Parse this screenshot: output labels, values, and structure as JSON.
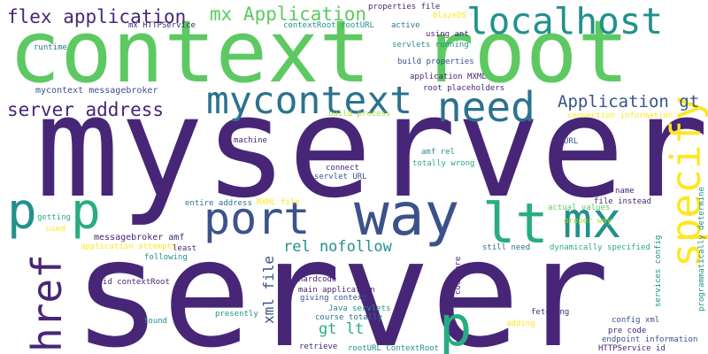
{
  "colors": {
    "background": "#ffffff",
    "palette": [
      "#482677",
      "#3b528b",
      "#2c728e",
      "#21918c",
      "#27ad81",
      "#5ec962",
      "#aadc32",
      "#fde725"
    ]
  },
  "words": [
    "myserver",
    "server",
    "context root",
    "localhost",
    "need",
    "mycontext",
    "way",
    "port",
    "specify",
    "lt",
    "mx",
    "p",
    "href",
    "flex application",
    "mx Application",
    "server address",
    "Application gt",
    "rel nofollow",
    "gt lt",
    "xml file",
    "properties file",
    "blazeDS",
    "contextRoot rootURL",
    "mx HTTPService",
    "active",
    "runtime",
    "using ant",
    "servlets running",
    "build properties",
    "application MXML",
    "mycontext messagebroker",
    "root placeholders",
    "build process",
    "connection information",
    "machine",
    "amf rel",
    "URL",
    "connect",
    "totally wrong",
    "servlet URL",
    "entire address",
    "MXML file",
    "name",
    "file instead",
    "actual values",
    "getting",
    "messagebroker amf",
    "used",
    "proper way",
    "application attempts",
    "least",
    "still need",
    "dynamically specified",
    "following",
    "id contextRoot",
    "hardcode",
    "code pre",
    "main application",
    "giving context",
    "services config",
    "programmatically determine",
    "found",
    "presently",
    "Java servlets",
    "course totally",
    "fetching",
    "adding",
    "config xml",
    "pre code",
    "retrieve",
    "endpoint information",
    "rootURL ContextRoot",
    "HTTPService id"
  ]
}
